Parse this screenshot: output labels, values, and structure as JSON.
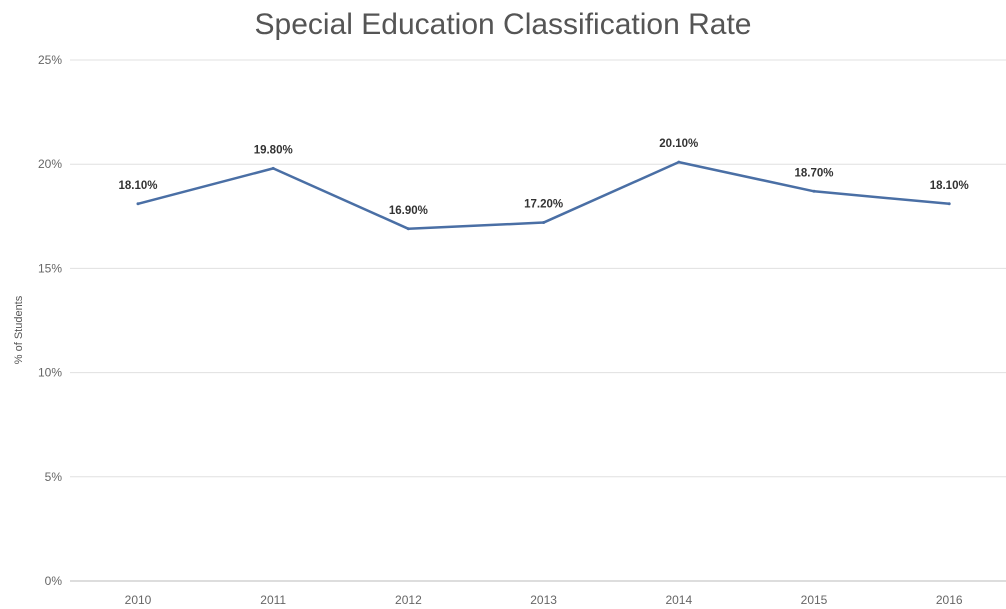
{
  "chart_data": {
    "type": "line",
    "title": "Special Education Classification Rate",
    "xlabel": "",
    "ylabel": "% of Students",
    "categories": [
      "2010",
      "2011",
      "2012",
      "2013",
      "2014",
      "2015",
      "2016"
    ],
    "series": [
      {
        "values": [
          18.1,
          19.8,
          16.9,
          17.2,
          20.1,
          18.7,
          18.1
        ],
        "data_labels": [
          "18.10%",
          "19.80%",
          "16.90%",
          "17.20%",
          "20.10%",
          "18.70%",
          "18.10%"
        ],
        "color": "#4a6fa5"
      }
    ],
    "ylim": [
      0,
      25
    ],
    "yticks": [
      0,
      5,
      10,
      15,
      20,
      25
    ],
    "ytick_labels": [
      "0%",
      "5%",
      "10%",
      "15%",
      "20%",
      "25%"
    ],
    "grid": true,
    "legend": "none"
  }
}
